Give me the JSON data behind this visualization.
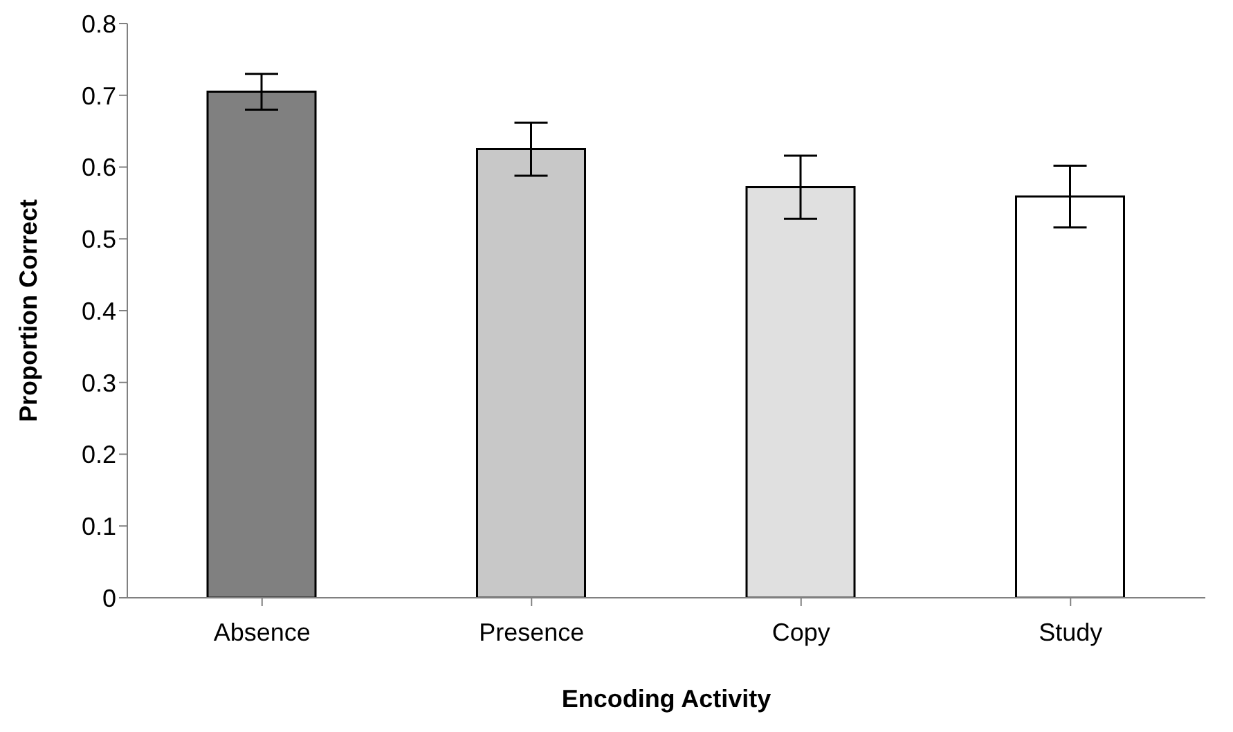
{
  "chart_data": {
    "type": "bar",
    "xlabel": "Encoding Activity",
    "ylabel": "Proportion Correct",
    "categories": [
      "Absence",
      "Presence",
      "Copy",
      "Study"
    ],
    "values": [
      0.705,
      0.625,
      0.572,
      0.559
    ],
    "errors": [
      0.025,
      0.037,
      0.044,
      0.043
    ],
    "colors": [
      "#808080",
      "#c8c8c8",
      "#e0e0e0",
      "#ffffff"
    ],
    "ylim": [
      0,
      0.8
    ],
    "yticks": [
      0,
      0.1,
      0.2,
      0.3,
      0.4,
      0.5,
      0.6,
      0.7,
      0.8
    ],
    "grid": false,
    "legend": false
  }
}
